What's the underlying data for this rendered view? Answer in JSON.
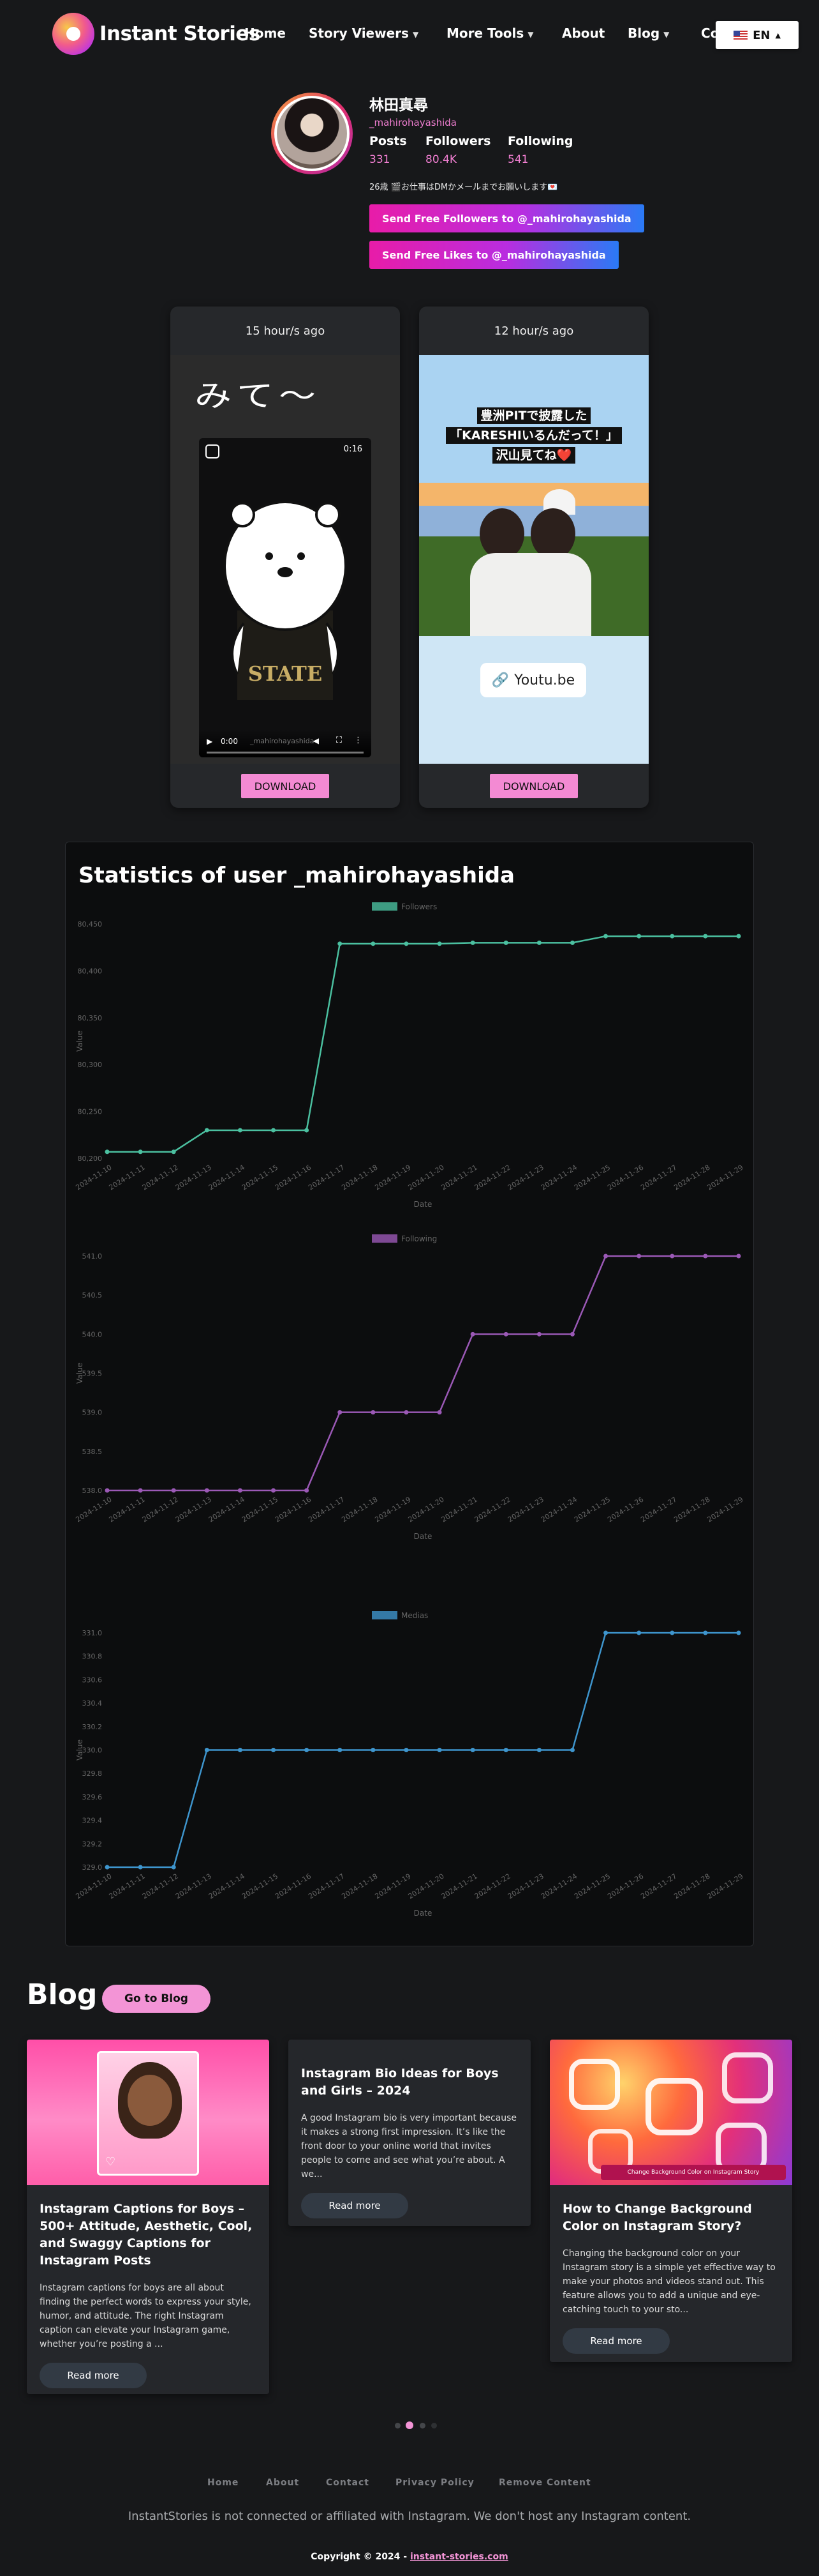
{
  "nav": {
    "logo_text": "Instant Stories",
    "items": [
      {
        "label": "Home"
      },
      {
        "label": "Story Viewers"
      },
      {
        "label": "More Tools"
      },
      {
        "label": "About"
      },
      {
        "label": "Blog"
      },
      {
        "label": "Co"
      }
    ],
    "language": "EN"
  },
  "profile": {
    "name": "林田真尋",
    "username": "_mahirohayashida",
    "posts_label": "Posts",
    "posts_value": "331",
    "followers_label": "Followers",
    "followers_value": "80.4K",
    "following_label": "Following",
    "following_value": "541",
    "bio": "26歳 🎬お仕事はDMかメールまでお願いします💌",
    "followers_button": "Send Free Followers to @_mahirohayashida",
    "likes_button": "Send Free Likes to @_mahirohayashida"
  },
  "stories": [
    {
      "time": "15 hour/s ago",
      "handwriting": "みて〜",
      "video_duration": "0:16",
      "player_time": "0:00",
      "watermark": "_mahirohayashida",
      "download": "DOWNLOAD"
    },
    {
      "time": "12 hour/s ago",
      "caption_lines": [
        "豊洲PITで披露した",
        "「KARESHIいるんだって！」",
        "沢山見てね❤️"
      ],
      "link_sticker": "Youtu.be",
      "download": "DOWNLOAD"
    }
  ],
  "stats": {
    "title": "Statistics of user _mahirohayashida"
  },
  "chart_data": [
    {
      "type": "line",
      "series": [
        {
          "name": "Followers",
          "color": "#4bc0a0",
          "values": [
            80207,
            80207,
            80207,
            80230,
            80230,
            80230,
            80230,
            80429,
            80429,
            80429,
            80429,
            80430,
            80430,
            80430,
            80430,
            80437,
            80437,
            80437,
            80437,
            80437
          ]
        }
      ],
      "categories": [
        "2024-11-10",
        "2024-11-11",
        "2024-11-12",
        "2024-11-13",
        "2024-11-14",
        "2024-11-15",
        "2024-11-16",
        "2024-11-17",
        "2024-11-18",
        "2024-11-19",
        "2024-11-20",
        "2024-11-21",
        "2024-11-22",
        "2024-11-23",
        "2024-11-24",
        "2024-11-25",
        "2024-11-26",
        "2024-11-27",
        "2024-11-28",
        "2024-11-29"
      ],
      "yticks": [
        "80,200",
        "80,250",
        "80,300",
        "80,350",
        "80,400",
        "80,450"
      ],
      "ylim": [
        80200,
        80450
      ],
      "xlabel": "Date",
      "ylabel": "Value",
      "legend": "top-center"
    },
    {
      "type": "line",
      "series": [
        {
          "name": "Following",
          "color": "#9b59b6",
          "values": [
            538,
            538,
            538,
            538,
            538,
            538,
            538,
            539,
            539,
            539,
            539,
            540,
            540,
            540,
            540,
            541,
            541,
            541,
            541,
            541
          ]
        }
      ],
      "categories": [
        "2024-11-10",
        "2024-11-11",
        "2024-11-12",
        "2024-11-13",
        "2024-11-14",
        "2024-11-15",
        "2024-11-16",
        "2024-11-17",
        "2024-11-18",
        "2024-11-19",
        "2024-11-20",
        "2024-11-21",
        "2024-11-22",
        "2024-11-23",
        "2024-11-24",
        "2024-11-25",
        "2024-11-26",
        "2024-11-27",
        "2024-11-28",
        "2024-11-29"
      ],
      "yticks": [
        "538.0",
        "538.5",
        "539.0",
        "539.5",
        "540.0",
        "540.5",
        "541.0"
      ],
      "ylim": [
        538,
        541
      ],
      "xlabel": "Date",
      "ylabel": "Value",
      "legend": "top-center"
    },
    {
      "type": "line",
      "series": [
        {
          "name": "Medias",
          "color": "#3e95cd",
          "values": [
            329,
            329,
            329,
            330,
            330,
            330,
            330,
            330,
            330,
            330,
            330,
            330,
            330,
            330,
            330,
            331,
            331,
            331,
            331,
            331
          ]
        }
      ],
      "categories": [
        "2024-11-10",
        "2024-11-11",
        "2024-11-12",
        "2024-11-13",
        "2024-11-14",
        "2024-11-15",
        "2024-11-16",
        "2024-11-17",
        "2024-11-18",
        "2024-11-19",
        "2024-11-20",
        "2024-11-21",
        "2024-11-22",
        "2024-11-23",
        "2024-11-24",
        "2024-11-25",
        "2024-11-26",
        "2024-11-27",
        "2024-11-28",
        "2024-11-29"
      ],
      "yticks": [
        "329.0",
        "329.2",
        "329.4",
        "329.6",
        "329.8",
        "330.0",
        "330.2",
        "330.4",
        "330.6",
        "330.8",
        "331.0"
      ],
      "ylim": [
        329,
        331
      ],
      "xlabel": "Date",
      "ylabel": "Value",
      "legend": "top-center"
    }
  ],
  "blog": {
    "title": "Blog",
    "button": "Go to Blog",
    "cards": [
      {
        "title": "Instagram Captions for Boys – 500+ Attitude, Aesthetic, Cool, and Swaggy Captions for Instagram Posts",
        "excerpt": "Instagram captions for boys are all about finding the perfect words to express your style, humor, and attitude. The right Instagram caption can elevate your Instagram game, whether you’re posting a ...",
        "button": "Read more"
      },
      {
        "title": "Instagram Bio Ideas for Boys and Girls – 2024",
        "excerpt": "A good Instagram bio is very important because it makes a strong first impression. It’s like the front door to your online world that invites people to come and see what you’re about. A we...",
        "button": "Read more"
      },
      {
        "title": "How to Change Background Color on Instagram Story?",
        "excerpt": "Changing the background color on your Instagram story is a simple yet effective way to make your photos and videos stand out. This feature allows you to add a unique and eye-catching touch to your sto...",
        "button": "Read more",
        "image_text": "Change Background Color on Instagram Story"
      }
    ]
  },
  "footer": {
    "links": [
      "Home",
      "About",
      "Contact",
      "Privacy Policy",
      "Remove Content"
    ],
    "note": "InstantStories is not connected or affiliated with Instagram. We don't host any Instagram content.",
    "copyright_prefix": "Copyright © 2024 - ",
    "copyright_link": "instant-stories.com"
  }
}
